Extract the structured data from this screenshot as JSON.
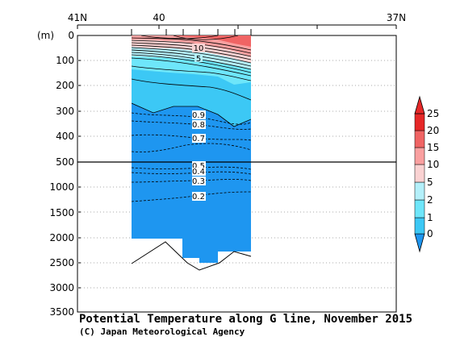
{
  "chart_data": {
    "type": "heatmap",
    "title": "Potential Temperature along G line, November 2015",
    "credit": "(C) Japan Meteorological Agency",
    "x_ticks": [
      "41N",
      "40",
      "37N"
    ],
    "y_unit": "(m)",
    "y_ticks_upper": [
      "0",
      "100",
      "200",
      "300",
      "400",
      "500"
    ],
    "y_ticks_lower": [
      "1000",
      "1500",
      "2000",
      "2500",
      "3000",
      "3500"
    ],
    "y_scale": "piecewise linear: 0-500 m upper section, 500-3500 m lower section",
    "colorbar": {
      "labels": [
        "0",
        "1",
        "2",
        "5",
        "10",
        "15",
        "20",
        "25"
      ],
      "colors": [
        "#1E96F0",
        "#3CC8F5",
        "#6EE6FA",
        "#B4F0FA",
        "#FAD2D2",
        "#FAA0A0",
        "#F06464",
        "#E62828"
      ]
    },
    "contour_labels": [
      "10",
      "5",
      "0.9",
      "0.8",
      "0.7",
      "0.5",
      "0.4",
      "0.3",
      "0.2"
    ]
  }
}
